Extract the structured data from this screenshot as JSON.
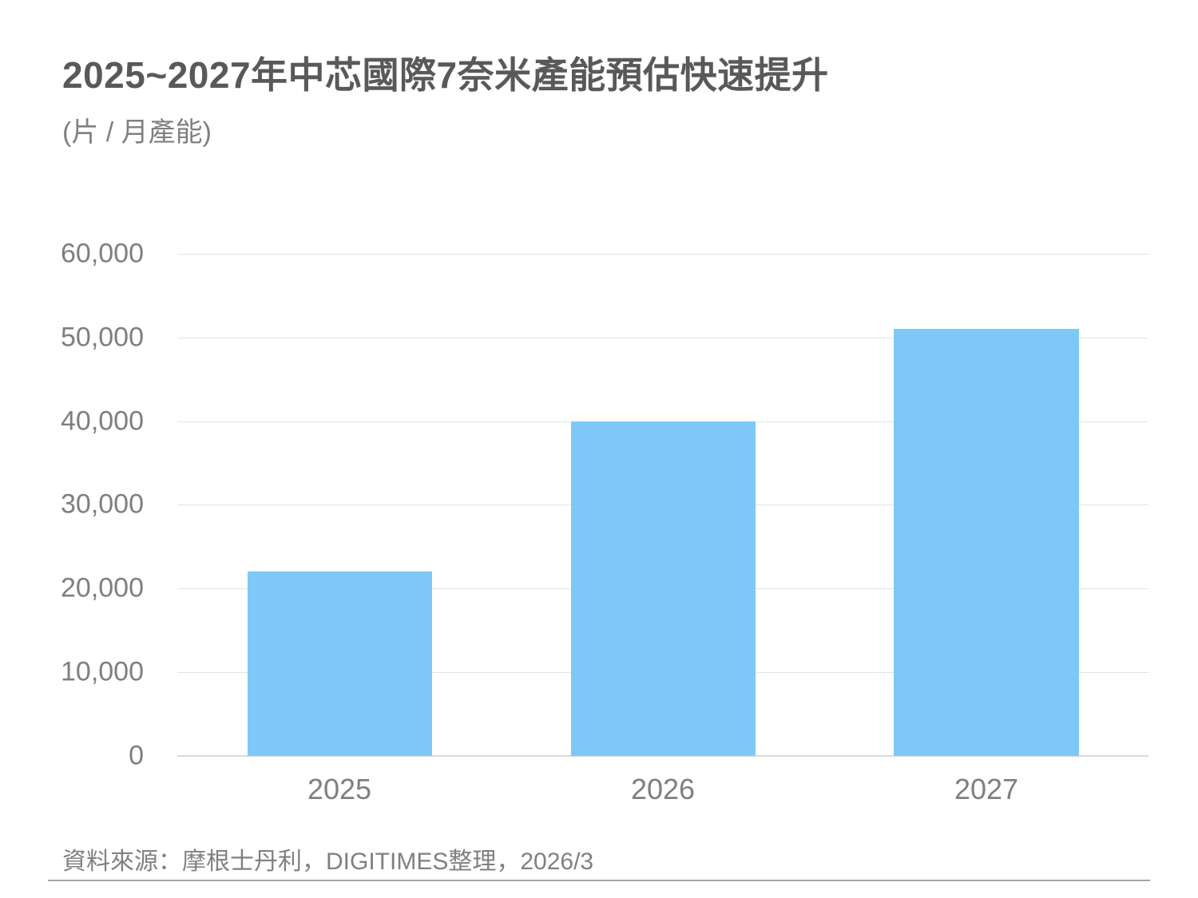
{
  "header": {
    "title": "2025~2027年中芯國際7奈米產能預估快速提升",
    "subtitle": "(片 / 月產能)"
  },
  "footer": {
    "source": "資料來源：摩根士丹利，DIGITIMES整理，2026/3"
  },
  "colors": {
    "bar": "#7ec8f8",
    "text": "#595959",
    "grid": "#e3e3e3"
  },
  "axis": {
    "y_ticks": [
      "0",
      "10,000",
      "20,000",
      "30,000",
      "40,000",
      "50,000",
      "60,000"
    ],
    "x_ticks": [
      "2025",
      "2026",
      "2027"
    ]
  },
  "chart_data": {
    "type": "bar",
    "title": "2025~2027年中芯國際7奈米產能預估快速提升",
    "subtitle": "(片 / 月產能)",
    "categories": [
      "2025",
      "2026",
      "2027"
    ],
    "values": [
      22000,
      40000,
      51000
    ],
    "xlabel": "",
    "ylabel": "片 / 月產能",
    "ylim": [
      0,
      60000
    ],
    "y_ticks": [
      0,
      10000,
      20000,
      30000,
      40000,
      50000,
      60000
    ],
    "grid": true,
    "legend": null,
    "source": "資料來源：摩根士丹利，DIGITIMES整理，2026/3"
  }
}
